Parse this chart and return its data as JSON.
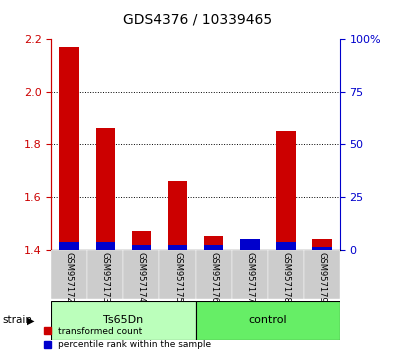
{
  "title": "GDS4376 / 10339465",
  "samples": [
    "GSM957172",
    "GSM957173",
    "GSM957174",
    "GSM957175",
    "GSM957176",
    "GSM957177",
    "GSM957178",
    "GSM957179"
  ],
  "red_values": [
    2.17,
    1.86,
    1.47,
    1.66,
    1.45,
    1.41,
    1.85,
    1.44
  ],
  "blue_values": [
    3.5,
    3.5,
    2.0,
    2.0,
    2.0,
    5.0,
    3.5,
    1.0
  ],
  "baseline": 1.4,
  "ylim_left": [
    1.4,
    2.2
  ],
  "ylim_right": [
    0,
    100
  ],
  "yticks_left": [
    1.4,
    1.6,
    1.8,
    2.0,
    2.2
  ],
  "yticks_right": [
    0,
    25,
    50,
    75,
    100
  ],
  "ytick_labels_right": [
    "0",
    "25",
    "50",
    "75",
    "100%"
  ],
  "red_color": "#cc0000",
  "blue_color": "#0000cc",
  "bar_width": 0.55,
  "title_color": "#000000",
  "left_tick_color": "#cc0000",
  "right_tick_color": "#0000cc",
  "grid_yticks": [
    1.6,
    1.8,
    2.0
  ],
  "legend_red": "transformed count",
  "legend_blue": "percentile rank within the sample",
  "group_colors": [
    "#bbffbb",
    "#66ee66"
  ],
  "group_labels": [
    "Ts65Dn",
    "control"
  ],
  "group_starts": [
    0,
    4
  ],
  "group_ends": [
    3,
    7
  ],
  "tick_bg_color": "#cccccc",
  "strain_label": "strain"
}
